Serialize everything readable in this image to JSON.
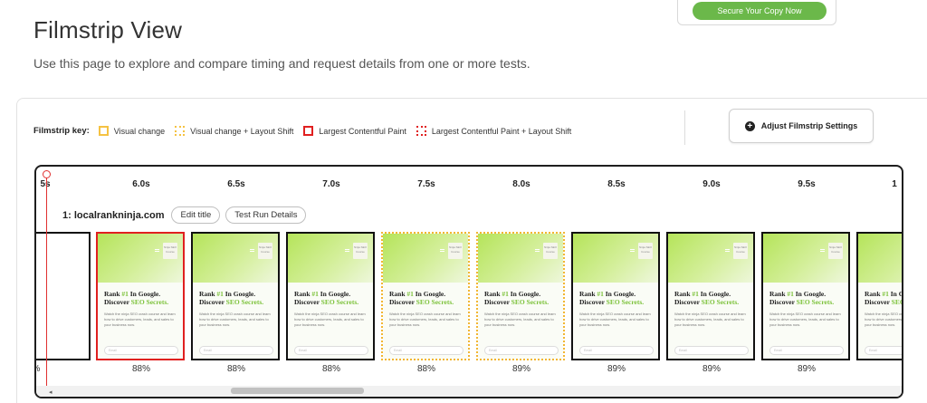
{
  "header": {
    "title": "Filmstrip View",
    "description": "Use this page to explore and compare timing and request details from one or more tests."
  },
  "promo": {
    "button_label": "Secure Your Copy Now"
  },
  "key": {
    "title": "Filmstrip key:",
    "items": [
      "Visual change",
      "Visual change + Layout Shift",
      "Largest Contentful Paint",
      "Largest Contentful Paint + Layout Shift"
    ]
  },
  "adjust_button": {
    "label": "Adjust Filmstrip Settings",
    "icon": "plus-icon"
  },
  "timeline": {
    "ticks": [
      "5s",
      "6.0s",
      "6.5s",
      "7.0s",
      "7.5s",
      "8.0s",
      "8.5s",
      "9.0s",
      "9.5s",
      "1"
    ]
  },
  "test": {
    "name": "1: localrankninja.com",
    "edit_label": "Edit title",
    "details_label": "Test Run Details"
  },
  "frames": [
    {
      "state": "partial",
      "percent": "%"
    },
    {
      "state": "lcp",
      "percent": "88%"
    },
    {
      "state": "normal",
      "percent": "88%"
    },
    {
      "state": "normal",
      "percent": "88%"
    },
    {
      "state": "shift",
      "percent": "88%"
    },
    {
      "state": "shift",
      "percent": "89%"
    },
    {
      "state": "normal",
      "percent": "89%"
    },
    {
      "state": "normal",
      "percent": "89%"
    },
    {
      "state": "normal",
      "percent": "89%"
    },
    {
      "state": "normal",
      "percent": ""
    }
  ],
  "screenshot": {
    "logo_text": "Ninja SEO Course",
    "heading_pre": "Rank ",
    "heading_num": "#1",
    "heading_mid": " In Google. Discover ",
    "heading_acc": "SEO Secrets.",
    "body_text": "Watch the ninja SEO crash course and learn how to drive customers, leads, and sales to your business now.",
    "input_placeholder": "Email"
  },
  "colors": {
    "visual_change": "#f5c242",
    "lcp": "#e02020",
    "accent_green": "#7cc23a"
  }
}
